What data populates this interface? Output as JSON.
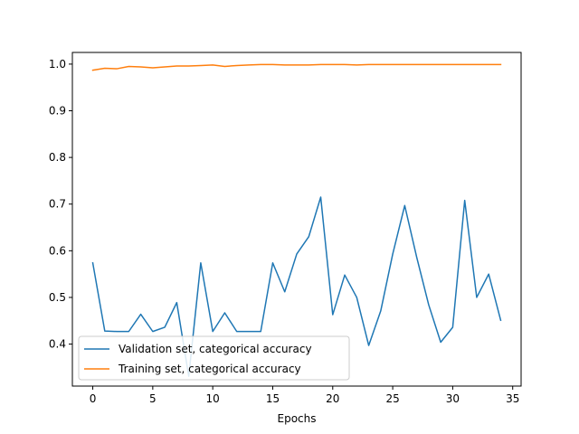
{
  "chart_data": {
    "type": "line",
    "title": "",
    "xlabel": "Epochs",
    "ylabel": "",
    "xlim": [
      -1.7,
      35.7
    ],
    "ylim": [
      0.31,
      1.025
    ],
    "xticks": [
      0,
      5,
      10,
      15,
      20,
      25,
      30,
      35
    ],
    "yticks": [
      0.4,
      0.5,
      0.6,
      0.7,
      0.8,
      0.9,
      1.0
    ],
    "ytick_labels": [
      "0.4",
      "0.5",
      "0.6",
      "0.7",
      "0.8",
      "0.9",
      "1.0"
    ],
    "grid": false,
    "legend_position": "lower-left",
    "x": [
      0,
      1,
      2,
      3,
      4,
      5,
      6,
      7,
      8,
      9,
      10,
      11,
      12,
      13,
      14,
      15,
      16,
      17,
      18,
      19,
      20,
      21,
      22,
      23,
      24,
      25,
      26,
      27,
      28,
      29,
      30,
      31,
      32,
      33,
      34
    ],
    "series": [
      {
        "name": "Validation set, categorical accuracy",
        "color": "#1f77b4",
        "values": [
          0.574,
          0.428,
          0.427,
          0.427,
          0.464,
          0.427,
          0.436,
          0.489,
          0.331,
          0.574,
          0.427,
          0.467,
          0.427,
          0.427,
          0.427,
          0.574,
          0.512,
          0.593,
          0.63,
          0.715,
          0.463,
          0.548,
          0.5,
          0.397,
          0.471,
          0.593,
          0.697,
          0.586,
          0.484,
          0.404,
          0.436,
          0.708,
          0.5,
          0.55,
          0.451
        ]
      },
      {
        "name": "Training set, categorical accuracy",
        "color": "#ff7f0e",
        "values": [
          0.987,
          0.991,
          0.99,
          0.995,
          0.994,
          0.992,
          0.994,
          0.996,
          0.996,
          0.997,
          0.998,
          0.995,
          0.997,
          0.998,
          0.999,
          0.999,
          0.998,
          0.998,
          0.998,
          0.999,
          0.999,
          0.999,
          0.998,
          0.999,
          0.999,
          0.999,
          0.999,
          0.999,
          0.999,
          0.999,
          0.999,
          0.999,
          0.999,
          0.999,
          0.999
        ]
      }
    ]
  }
}
